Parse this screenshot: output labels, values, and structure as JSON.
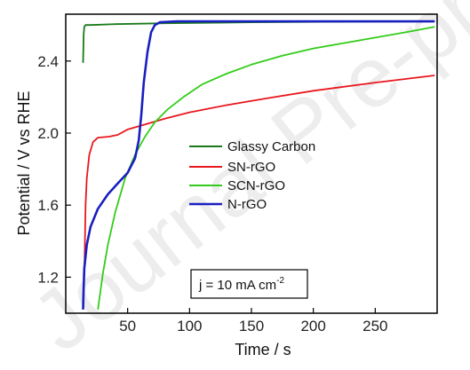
{
  "chart_data": {
    "type": "line",
    "xlabel": "Time / s",
    "ylabel": "Potential / V vs RHE",
    "xlim": [
      0,
      300
    ],
    "ylim": [
      1.0,
      2.66
    ],
    "xticks": [
      50,
      100,
      150,
      200,
      250
    ],
    "yticks": [
      1.2,
      1.6,
      2.0,
      2.4
    ],
    "xtick_labels": [
      "50",
      "100",
      "150",
      "200",
      "250"
    ],
    "ytick_labels": [
      "1.2",
      "1.6",
      "2.0",
      "2.4"
    ],
    "legend_position": "center",
    "grid": false,
    "annotation": {
      "prefix": "j = 10 mA cm",
      "superscript": "-2"
    },
    "watermark": "Journal Pre-proof",
    "series": [
      {
        "name": "Glassy Carbon",
        "color": "#1a7a1a",
        "points": [
          [
            14,
            2.39
          ],
          [
            14.5,
            2.55
          ],
          [
            15,
            2.59
          ],
          [
            16,
            2.6
          ],
          [
            20,
            2.6
          ],
          [
            40,
            2.605
          ],
          [
            80,
            2.61
          ],
          [
            150,
            2.615
          ],
          [
            220,
            2.618
          ],
          [
            298,
            2.62
          ]
        ]
      },
      {
        "name": "SN-rGO",
        "color": "#e8181e",
        "points": [
          [
            15,
            1.2
          ],
          [
            15.5,
            1.4
          ],
          [
            16,
            1.6
          ],
          [
            17,
            1.75
          ],
          [
            19,
            1.88
          ],
          [
            22,
            1.95
          ],
          [
            26,
            1.975
          ],
          [
            35,
            1.98
          ],
          [
            42,
            1.99
          ],
          [
            50,
            2.02
          ],
          [
            60,
            2.04
          ],
          [
            80,
            2.08
          ],
          [
            100,
            2.115
          ],
          [
            130,
            2.155
          ],
          [
            160,
            2.19
          ],
          [
            200,
            2.235
          ],
          [
            250,
            2.28
          ],
          [
            298,
            2.32
          ]
        ]
      },
      {
        "name": "SCN-rGO",
        "color": "#33cc1a",
        "points": [
          [
            26,
            1.02
          ],
          [
            28,
            1.12
          ],
          [
            30,
            1.22
          ],
          [
            34,
            1.38
          ],
          [
            40,
            1.56
          ],
          [
            48,
            1.75
          ],
          [
            56,
            1.88
          ],
          [
            64,
            1.98
          ],
          [
            72,
            2.06
          ],
          [
            82,
            2.13
          ],
          [
            95,
            2.2
          ],
          [
            110,
            2.27
          ],
          [
            130,
            2.33
          ],
          [
            150,
            2.38
          ],
          [
            175,
            2.43
          ],
          [
            200,
            2.47
          ],
          [
            225,
            2.5
          ],
          [
            250,
            2.53
          ],
          [
            275,
            2.56
          ],
          [
            298,
            2.59
          ]
        ]
      },
      {
        "name": "N-rGO",
        "color": "#1a1fc0",
        "points": [
          [
            14,
            1.02
          ],
          [
            14.5,
            1.15
          ],
          [
            15,
            1.25
          ],
          [
            17,
            1.38
          ],
          [
            20,
            1.48
          ],
          [
            26,
            1.58
          ],
          [
            34,
            1.66
          ],
          [
            42,
            1.72
          ],
          [
            50,
            1.78
          ],
          [
            56,
            1.86
          ],
          [
            59,
            1.96
          ],
          [
            61,
            2.1
          ],
          [
            63,
            2.28
          ],
          [
            66,
            2.45
          ],
          [
            69,
            2.56
          ],
          [
            72,
            2.6
          ],
          [
            76,
            2.615
          ],
          [
            90,
            2.62
          ],
          [
            150,
            2.62
          ],
          [
            220,
            2.62
          ],
          [
            298,
            2.62
          ]
        ]
      }
    ]
  }
}
